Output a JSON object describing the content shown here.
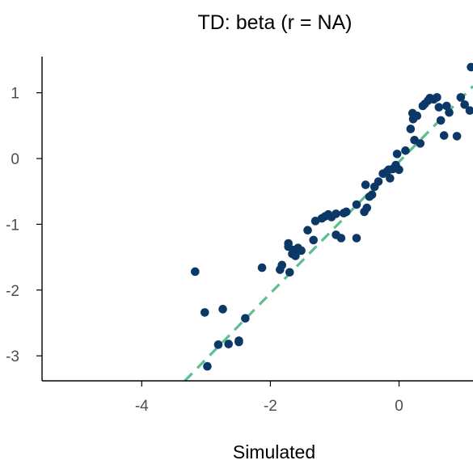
{
  "chart_data": {
    "type": "scatter",
    "title": "TD: beta (r = NA)",
    "xlabel": "Simulated",
    "ylabel": "",
    "xlim": [
      -5.55,
      1.15
    ],
    "ylim": [
      -3.38,
      1.55
    ],
    "x_ticks": [
      {
        "value": -4,
        "label": "-4"
      },
      {
        "value": -2,
        "label": "-2"
      },
      {
        "value": 0,
        "label": "0"
      }
    ],
    "y_ticks": [
      {
        "value": 1,
        "label": "1"
      },
      {
        "value": 0,
        "label": "0"
      },
      {
        "value": -1,
        "label": "-1"
      },
      {
        "value": -2,
        "label": "-2"
      },
      {
        "value": -3,
        "label": "-3"
      }
    ],
    "grid": false,
    "point_color": "#0b3866",
    "line_color": "#5cbf8f",
    "fit_line": {
      "style": "dashed",
      "slope": 1.0,
      "intercept": -0.05
    },
    "points": [
      [
        -3.17,
        -1.72
      ],
      [
        -3.02,
        -2.34
      ],
      [
        -2.98,
        -3.16
      ],
      [
        -2.74,
        -2.29
      ],
      [
        -2.81,
        -2.83
      ],
      [
        -2.65,
        -2.82
      ],
      [
        -2.49,
        -2.77
      ],
      [
        -2.49,
        -2.79
      ],
      [
        -2.39,
        -2.43
      ],
      [
        -2.13,
        -1.66
      ],
      [
        -1.85,
        -1.69
      ],
      [
        -1.82,
        -1.62
      ],
      [
        -1.72,
        -1.29
      ],
      [
        -1.72,
        -1.34
      ],
      [
        -1.7,
        -1.73
      ],
      [
        -1.66,
        -1.45
      ],
      [
        -1.64,
        -1.39
      ],
      [
        -1.61,
        -1.48
      ],
      [
        -1.57,
        -1.36
      ],
      [
        -1.52,
        -1.4
      ],
      [
        -1.42,
        -1.09
      ],
      [
        -1.33,
        -1.24
      ],
      [
        -1.3,
        -0.95
      ],
      [
        -1.2,
        -0.91
      ],
      [
        -1.15,
        -0.88
      ],
      [
        -1.1,
        -0.85
      ],
      [
        -1.05,
        -0.89
      ],
      [
        -0.98,
        -0.84
      ],
      [
        -0.98,
        -1.16
      ],
      [
        -0.9,
        -1.21
      ],
      [
        -0.86,
        -0.83
      ],
      [
        -0.82,
        -0.81
      ],
      [
        -0.66,
        -1.21
      ],
      [
        -0.66,
        -0.7
      ],
      [
        -0.54,
        -0.81
      ],
      [
        -0.52,
        -0.4
      ],
      [
        -0.5,
        -0.75
      ],
      [
        -0.46,
        -0.58
      ],
      [
        -0.42,
        -0.55
      ],
      [
        -0.38,
        -0.43
      ],
      [
        -0.32,
        -0.35
      ],
      [
        -0.25,
        -0.23
      ],
      [
        -0.19,
        -0.2
      ],
      [
        -0.16,
        -0.17
      ],
      [
        -0.14,
        -0.3
      ],
      [
        -0.1,
        -0.16
      ],
      [
        -0.05,
        -0.1
      ],
      [
        -0.03,
        0.07
      ],
      [
        0.0,
        -0.17
      ],
      [
        0.1,
        0.12
      ],
      [
        0.18,
        0.45
      ],
      [
        0.21,
        0.69
      ],
      [
        0.22,
        0.6
      ],
      [
        0.24,
        0.28
      ],
      [
        0.28,
        0.65
      ],
      [
        0.33,
        0.23
      ],
      [
        0.37,
        0.8
      ],
      [
        0.4,
        0.83
      ],
      [
        0.45,
        0.88
      ],
      [
        0.48,
        0.92
      ],
      [
        0.54,
        0.9
      ],
      [
        0.59,
        0.93
      ],
      [
        0.62,
        0.78
      ],
      [
        0.65,
        0.58
      ],
      [
        0.7,
        0.35
      ],
      [
        0.74,
        0.8
      ],
      [
        0.78,
        0.7
      ],
      [
        0.9,
        0.34
      ],
      [
        0.96,
        0.93
      ],
      [
        1.02,
        0.82
      ],
      [
        1.1,
        0.73
      ],
      [
        1.12,
        1.39
      ]
    ]
  }
}
